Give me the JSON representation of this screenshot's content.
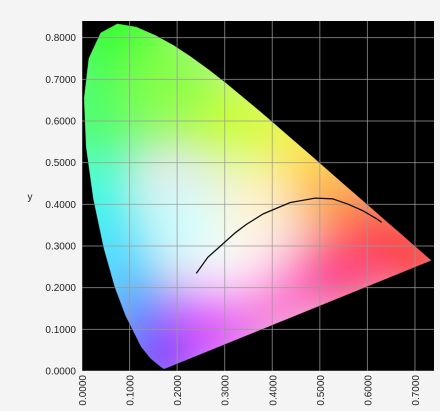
{
  "chart_data": {
    "type": "scatter",
    "title": "",
    "xlabel": "",
    "ylabel": "y",
    "xlim": [
      0,
      0.74
    ],
    "ylim": [
      0,
      0.84
    ],
    "grid": true,
    "background_color": "#000000",
    "x_ticks": [
      "0.0000",
      "0.1000",
      "0.2000",
      "0.3000",
      "0.4000",
      "0.5000",
      "0.6000",
      "0.7000"
    ],
    "x_tick_values": [
      0,
      0.1,
      0.2,
      0.3,
      0.4,
      0.5,
      0.6,
      0.7
    ],
    "y_ticks": [
      "0.0000",
      "0.1000",
      "0.2000",
      "0.3000",
      "0.4000",
      "0.5000",
      "0.6000",
      "0.7000",
      "0.8000"
    ],
    "y_tick_values": [
      0,
      0.1,
      0.2,
      0.3,
      0.4,
      0.5,
      0.6,
      0.7,
      0.8
    ],
    "gamut_boundary": [
      [
        0.1741,
        0.005
      ],
      [
        0.1738,
        0.0049
      ],
      [
        0.1703,
        0.0058
      ],
      [
        0.1666,
        0.0089
      ],
      [
        0.1566,
        0.0177
      ],
      [
        0.144,
        0.0297
      ],
      [
        0.1241,
        0.0578
      ],
      [
        0.0913,
        0.1327
      ],
      [
        0.0687,
        0.2007
      ],
      [
        0.0454,
        0.295
      ],
      [
        0.0235,
        0.4127
      ],
      [
        0.0082,
        0.5384
      ],
      [
        0.0039,
        0.6548
      ],
      [
        0.0139,
        0.7502
      ],
      [
        0.0389,
        0.812
      ],
      [
        0.0743,
        0.8338
      ],
      [
        0.1142,
        0.8262
      ],
      [
        0.1547,
        0.8059
      ],
      [
        0.1929,
        0.7816
      ],
      [
        0.2296,
        0.7543
      ],
      [
        0.2658,
        0.7243
      ],
      [
        0.3016,
        0.6923
      ],
      [
        0.3373,
        0.6589
      ],
      [
        0.3731,
        0.6245
      ],
      [
        0.4087,
        0.5896
      ],
      [
        0.4441,
        0.5547
      ],
      [
        0.4788,
        0.5202
      ],
      [
        0.5125,
        0.4866
      ],
      [
        0.5448,
        0.4544
      ],
      [
        0.5752,
        0.4242
      ],
      [
        0.6029,
        0.3965
      ],
      [
        0.627,
        0.3725
      ],
      [
        0.6482,
        0.3514
      ],
      [
        0.6658,
        0.334
      ],
      [
        0.6915,
        0.3083
      ],
      [
        0.7079,
        0.292
      ],
      [
        0.7347,
        0.2653
      ]
    ],
    "locus_curve": [
      [
        0.2403,
        0.2343
      ],
      [
        0.2644,
        0.2729
      ],
      [
        0.2868,
        0.2955
      ],
      [
        0.3221,
        0.3318
      ],
      [
        0.3451,
        0.3516
      ],
      [
        0.3805,
        0.3768
      ],
      [
        0.437,
        0.4042
      ],
      [
        0.49,
        0.415
      ],
      [
        0.5267,
        0.4133
      ],
      [
        0.56,
        0.4
      ],
      [
        0.59,
        0.385
      ],
      [
        0.62,
        0.365
      ],
      [
        0.63,
        0.357
      ]
    ]
  }
}
